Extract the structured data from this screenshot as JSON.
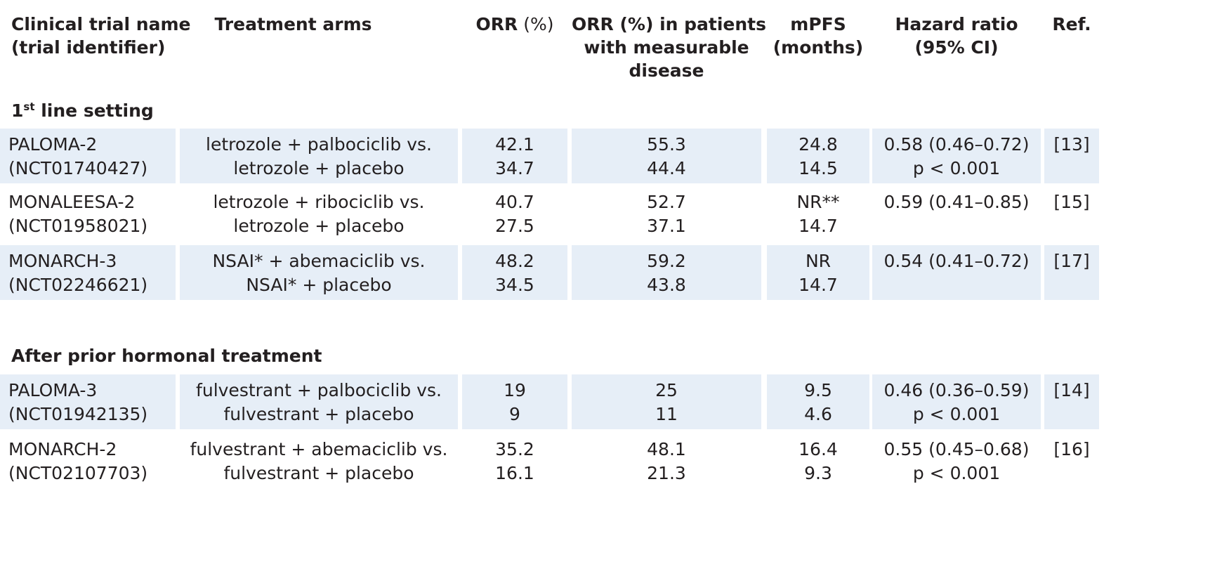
{
  "header": {
    "trial": [
      "Clinical trial name",
      "(trial identifier)"
    ],
    "arms": "Treatment arms",
    "orr_bold": "ORR",
    "orr_unit": " (%)",
    "orr_meas_bold": "ORR",
    "orr_meas_rest": " (%) in patients",
    "orr_meas_l2": "with measurable",
    "orr_meas_l3": "disease",
    "mpfs": [
      "mPFS",
      "(months)"
    ],
    "hr": [
      "Hazard ratio",
      "(95% CI)"
    ],
    "ref": "Ref."
  },
  "sections": [
    {
      "title_main": "1",
      "title_sup": "st",
      "title_rest": " line setting",
      "rows": [
        {
          "trial": [
            "PALOMA-2",
            "(NCT01740427)"
          ],
          "arms": [
            "letrozole + palbociclib vs.",
            "letrozole + placebo"
          ],
          "orr": [
            "42.1",
            "34.7"
          ],
          "orr_meas": [
            "55.3",
            "44.4"
          ],
          "mpfs": [
            "24.8",
            "14.5"
          ],
          "hr": [
            "0.58 (0.46–0.72)",
            "p < 0.001"
          ],
          "ref": "[13]"
        },
        {
          "trial": [
            "MONALEESA-2",
            "(NCT01958021)"
          ],
          "arms": [
            "letrozole + ribociclib vs.",
            "letrozole + placebo"
          ],
          "orr": [
            "40.7",
            "27.5"
          ],
          "orr_meas": [
            "52.7",
            "37.1"
          ],
          "mpfs": [
            "NR**",
            "14.7"
          ],
          "hr": [
            "0.59 (0.41–0.85)",
            ""
          ],
          "ref": "[15]"
        },
        {
          "trial": [
            "MONARCH-3",
            "(NCT02246621)"
          ],
          "arms": [
            "NSAI* + abemaciclib vs.",
            "NSAI* + placebo"
          ],
          "orr": [
            "48.2",
            "34.5"
          ],
          "orr_meas": [
            "59.2",
            "43.8"
          ],
          "mpfs": [
            "NR",
            "14.7"
          ],
          "hr": [
            "0.54 (0.41–0.72)",
            ""
          ],
          "ref": "[17]"
        }
      ]
    },
    {
      "title_main": "After prior hormonal treatment",
      "title_sup": "",
      "title_rest": "",
      "rows": [
        {
          "trial": [
            "PALOMA-3",
            "(NCT01942135)"
          ],
          "arms": [
            "fulvestrant  + palbociclib vs.",
            "fulvestrant + placebo"
          ],
          "orr": [
            "19",
            "9"
          ],
          "orr_meas": [
            "25",
            "11"
          ],
          "mpfs": [
            "9.5",
            "4.6"
          ],
          "hr": [
            "0.46 (0.36–0.59)",
            "p < 0.001"
          ],
          "ref": "[14]"
        },
        {
          "trial": [
            "MONARCH-2",
            "(NCT02107703)"
          ],
          "arms": [
            "fulvestrant + abemaciclib vs.",
            "fulvestrant + placebo"
          ],
          "orr": [
            "35.2",
            "16.1"
          ],
          "orr_meas": [
            "48.1",
            "21.3"
          ],
          "mpfs": [
            "16.4",
            "9.3"
          ],
          "hr": [
            "0.55 (0.45–0.68)",
            "p < 0.001"
          ],
          "ref": "[16]"
        }
      ]
    }
  ]
}
